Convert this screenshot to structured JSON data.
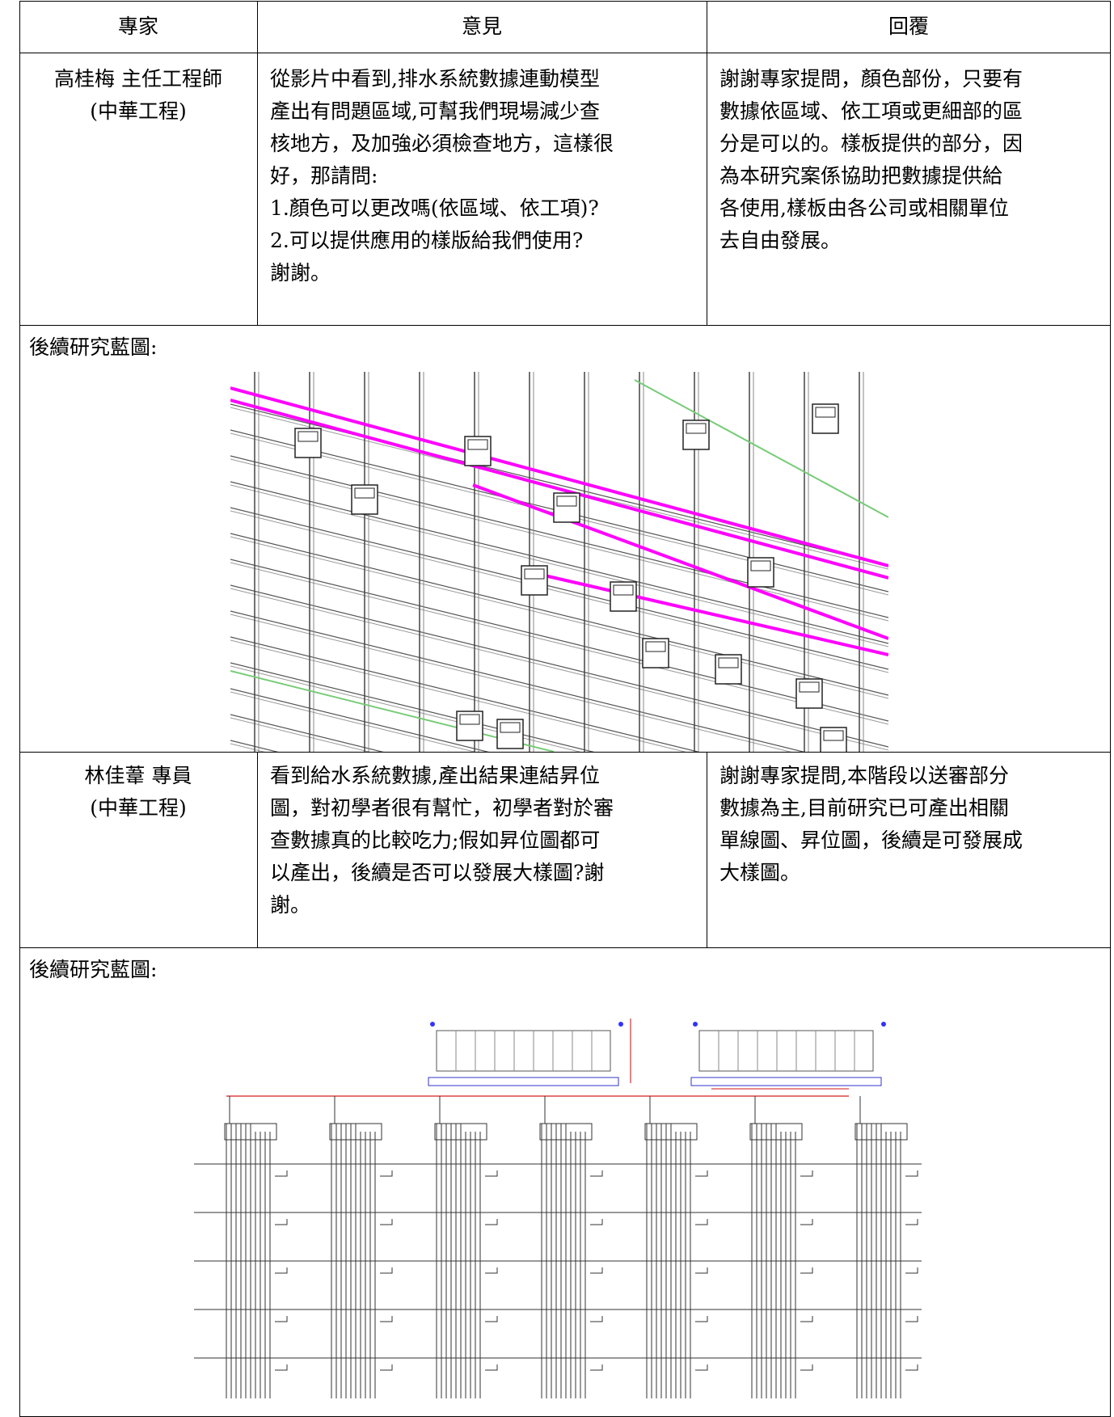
{
  "table": {
    "header": [
      "專家",
      "意見",
      "回覆"
    ],
    "rows": [
      {
        "expert": [
          "高桂梅 主任工程師",
          "(中華工程)"
        ],
        "opinion": [
          "從影片中看到,排水系統數據連動模型",
          "產出有問題區域,可幫我們現場減少查",
          "核地方，及加強必須檢查地方，這樣很",
          "好，那請問:",
          "1.顏色可以更改嗎(依區域、依工項)?",
          "2.可以提供應用的樣版給我們使用?",
          "謝謝。"
        ],
        "reply": [
          "謝謝專家提問，顏色部份，只要有",
          "數據依區域、依工項或更細部的區",
          "分是可以的。樣板提供的部分，因",
          "為本研究案係協助把數據提供給",
          "各使用,樣板由各公司或相關單位",
          "去自由發展。"
        ]
      },
      {
        "caption": "後續研究藍圖:"
      },
      {
        "expert": [
          "林佳葦 專員",
          "(中華工程)"
        ],
        "opinion": [
          "看到給水系統數據,產出結果連結昇位",
          "圖，對初學者很有幫忙，初學者對於審",
          "查數據真的比較吃力;假如昇位圖都可",
          "以產出，後續是否可以發展大樣圖?謝",
          "謝。"
        ],
        "reply": [
          "謝謝專家提問,本階段以送審部分",
          "數據為主,目前研究已可產出相關",
          "單線圖、昇位圖，後續是可發展成",
          "大樣圖。"
        ]
      },
      {
        "caption": "後續研究藍圖:"
      }
    ]
  }
}
